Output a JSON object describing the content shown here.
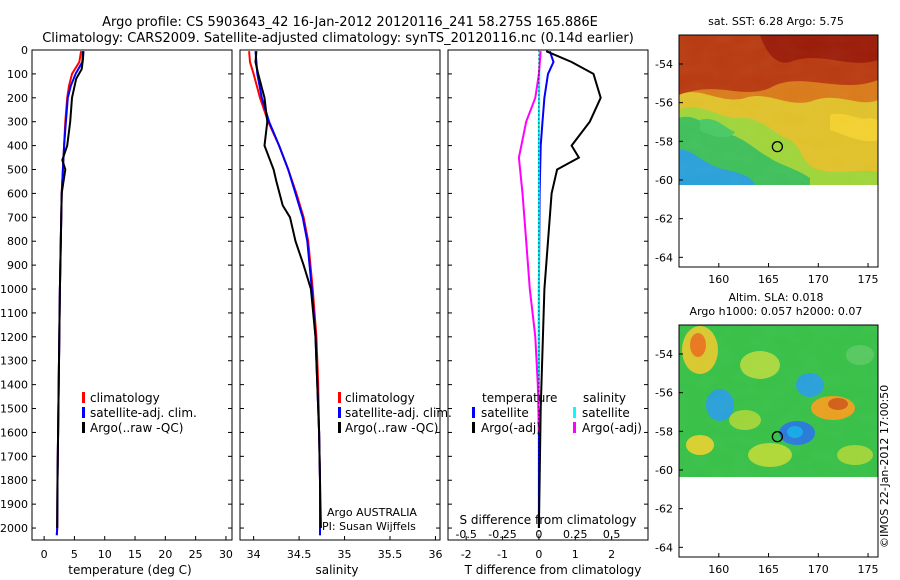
{
  "header": {
    "line1": "Argo profile: CS 5903643_42 16-Jan-2012 20120116_241 58.275S 165.886E",
    "line2": "Climatology: CARS2009. Satellite-adjusted climatology: synTS_20120116.nc (0.14d earlier)"
  },
  "colors": {
    "climatology": "#ff0000",
    "satellite": "#0000ff",
    "argo": "#000000",
    "sat_salinity": "#00ffff",
    "argo_salinity": "#ff00ff"
  },
  "watermark": "©IMOS 22-Jan-2012 17:00:50",
  "chart_data": [
    {
      "type": "line",
      "xlabel": "temperature (deg C)",
      "ylabel": "",
      "xlim": [
        -2,
        31
      ],
      "ylim": [
        2050,
        0
      ],
      "xticks": [
        "0",
        "5",
        "10",
        "15",
        "20",
        "25",
        "30"
      ],
      "yticks": [
        "0",
        "100",
        "200",
        "300",
        "400",
        "500",
        "600",
        "700",
        "800",
        "900",
        "1000",
        "1100",
        "1200",
        "1300",
        "1400",
        "1500",
        "1600",
        "1700",
        "1800",
        "1900",
        "2000"
      ],
      "legend": [
        "climatology",
        "satellite-adj. clim.",
        "Argo(..raw -QC)"
      ],
      "series": [
        {
          "name": "climatology",
          "color": "#ff0000",
          "x": [
            6.1,
            5.8,
            4.6,
            4.1,
            3.8,
            3.5,
            3.3,
            3.1,
            2.9,
            2.75,
            2.6,
            2.5,
            2.4,
            2.3,
            2.2,
            2.15,
            2.1
          ],
          "y": [
            5,
            50,
            100,
            150,
            200,
            300,
            400,
            500,
            600,
            800,
            1000,
            1200,
            1400,
            1600,
            1800,
            2000,
            2030
          ]
        },
        {
          "name": "satellite-adj. clim.",
          "color": "#0000ff",
          "x": [
            6.4,
            6.3,
            5.2,
            4.4,
            3.9,
            3.6,
            3.3,
            3.1,
            2.9,
            2.75,
            2.6,
            2.5,
            2.4,
            2.3,
            2.2,
            2.15,
            2.1
          ],
          "y": [
            5,
            50,
            100,
            150,
            200,
            300,
            400,
            500,
            600,
            800,
            1000,
            1200,
            1400,
            1600,
            1800,
            2000,
            2030
          ]
        },
        {
          "name": "Argo(..raw -QC)",
          "color": "#000000",
          "x": [
            6.5,
            6.4,
            6.2,
            5.3,
            4.6,
            4.3,
            3.8,
            3.0,
            3.5,
            2.9,
            2.75,
            2.6,
            2.5,
            2.4,
            2.3,
            2.2,
            2.15
          ],
          "y": [
            5,
            40,
            80,
            120,
            200,
            300,
            400,
            460,
            500,
            600,
            800,
            1000,
            1200,
            1400,
            1600,
            1800,
            2000
          ]
        }
      ]
    },
    {
      "type": "line",
      "xlabel": "salinity",
      "xlim": [
        33.85,
        36.05
      ],
      "ylim": [
        2050,
        0
      ],
      "xticks": [
        "34",
        "34.5",
        "35",
        "35.5",
        "36"
      ],
      "legend": [
        "climatology",
        "satellite-adj. clim.",
        "Argo(..raw -QC)"
      ],
      "annotation": [
        "Argo AUSTRALIA",
        "PI: Susan Wijffels"
      ],
      "series": [
        {
          "name": "climatology",
          "color": "#ff0000",
          "x": [
            33.95,
            33.96,
            34.0,
            34.07,
            34.16,
            34.28,
            34.38,
            34.47,
            34.55,
            34.6,
            34.65,
            34.69,
            34.71,
            34.72,
            34.73,
            34.73,
            34.73
          ],
          "y": [
            5,
            50,
            100,
            200,
            300,
            400,
            500,
            600,
            700,
            800,
            1000,
            1200,
            1400,
            1600,
            1800,
            2000,
            2030
          ]
        },
        {
          "name": "satellite-adj. clim.",
          "color": "#0000ff",
          "x": [
            34.02,
            34.03,
            34.04,
            34.09,
            34.17,
            34.28,
            34.38,
            34.46,
            34.54,
            34.59,
            34.64,
            34.68,
            34.7,
            34.72,
            34.73,
            34.73,
            34.73
          ],
          "y": [
            5,
            50,
            100,
            200,
            300,
            400,
            500,
            600,
            700,
            800,
            1000,
            1200,
            1400,
            1600,
            1800,
            2000,
            2030
          ]
        },
        {
          "name": "Argo(..raw -QC)",
          "color": "#000000",
          "x": [
            34.03,
            34.02,
            34.05,
            34.12,
            34.15,
            34.12,
            34.22,
            34.25,
            34.32,
            34.4,
            34.46,
            34.55,
            34.63,
            34.68,
            34.7,
            34.72,
            34.73,
            34.74
          ],
          "y": [
            5,
            50,
            100,
            200,
            300,
            400,
            500,
            550,
            650,
            700,
            800,
            900,
            1000,
            1200,
            1400,
            1600,
            1800,
            2000
          ]
        }
      ]
    },
    {
      "type": "line",
      "xlabel": "T difference from climatology",
      "xlabel_top": "S difference from climatology",
      "xlim": [
        -2.5,
        3.0
      ],
      "ylim": [
        2050,
        0
      ],
      "xticks_t": [
        "-2",
        "-1",
        "0",
        "1",
        "2"
      ],
      "xticks_s": [
        "-0.5",
        "-0.25",
        "0",
        "0.25",
        "0.5"
      ],
      "legend": {
        "temperature_header": "temperature",
        "salinity_header": "salinity",
        "items": [
          "satellite",
          "Argo(-adj)",
          "satellite",
          "Argo(-adj)"
        ]
      },
      "series": [
        {
          "name": "temperature satellite",
          "color": "#0000ff",
          "x": [
            0.3,
            0.4,
            0.25,
            0.15,
            0.1,
            0.05,
            0.02,
            0.0,
            0.0,
            0.0
          ],
          "y": [
            5,
            50,
            100,
            200,
            300,
            400,
            600,
            1000,
            1500,
            2000
          ]
        },
        {
          "name": "temperature Argo(-adj)",
          "color": "#000000",
          "x": [
            0.2,
            0.9,
            1.5,
            1.7,
            1.4,
            0.9,
            1.1,
            0.5,
            0.35,
            0.25,
            0.15,
            0.05,
            0.0
          ],
          "y": [
            5,
            50,
            100,
            200,
            300,
            400,
            450,
            500,
            600,
            800,
            1000,
            1500,
            2000
          ]
        },
        {
          "name": "salinity satellite",
          "color": "#00ffff",
          "x": [
            0.02,
            0.01,
            0.0,
            0.0,
            0.0,
            0.0
          ],
          "y": [
            5,
            100,
            300,
            600,
            1000,
            1500
          ]
        },
        {
          "name": "salinity Argo(-adj)",
          "color": "#ff00ff",
          "x": [
            0.05,
            0.0,
            -0.1,
            -0.35,
            -0.55,
            -0.45,
            -0.35,
            -0.25,
            -0.1,
            -0.03,
            0.0
          ],
          "y": [
            5,
            100,
            200,
            300,
            450,
            600,
            800,
            1000,
            1200,
            1400,
            1600
          ]
        }
      ]
    },
    {
      "type": "heatmap",
      "title": "sat. SST: 6.28  Argo: 5.75",
      "xlim": [
        156,
        176
      ],
      "ylim": [
        -64.5,
        -52.5
      ],
      "xticks": [
        "160",
        "165",
        "170",
        "175"
      ],
      "yticks": [
        "-54",
        "-56",
        "-58",
        "-60",
        "-62",
        "-64"
      ],
      "marker": {
        "lon": 165.886,
        "lat": -58.275
      }
    },
    {
      "type": "heatmap",
      "title": "Altim. SLA: 0.018",
      "subtitle": "Argo h1000: 0.057 h2000: 0.07",
      "xlim": [
        156,
        176
      ],
      "ylim": [
        -64.5,
        -52.5
      ],
      "xticks": [
        "160",
        "165",
        "170",
        "175"
      ],
      "yticks": [
        "-54",
        "-56",
        "-58",
        "-60",
        "-62",
        "-64"
      ],
      "marker": {
        "lon": 165.886,
        "lat": -58.275
      }
    }
  ]
}
